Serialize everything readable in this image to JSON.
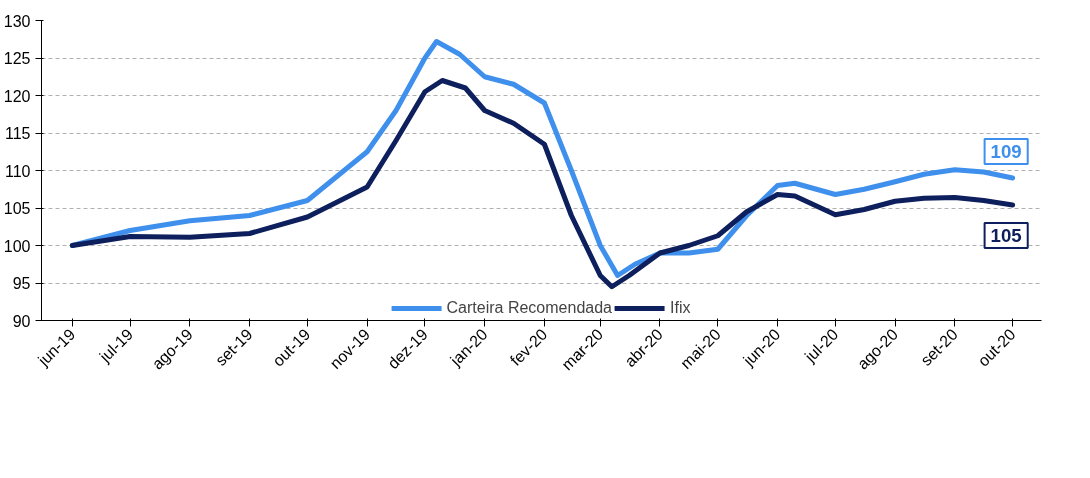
{
  "chart_data": {
    "type": "line",
    "x": [
      "2019-06-01",
      "2019-07-01",
      "2019-08-01",
      "2019-09-01",
      "2019-10-01",
      "2019-11-01",
      "2019-11-16",
      "2019-12-01",
      "2019-12-07",
      "2019-12-19",
      "2020-01-01",
      "2020-01-16",
      "2020-02-01",
      "2020-02-15",
      "2020-03-01",
      "2020-03-10",
      "2020-03-19",
      "2020-04-01",
      "2020-04-16",
      "2020-05-01",
      "2020-05-16",
      "2020-06-01",
      "2020-06-10",
      "2020-07-01",
      "2020-07-16",
      "2020-08-01",
      "2020-08-16",
      "2020-09-01",
      "2020-09-16",
      "2020-10-01"
    ],
    "series": [
      {
        "name": "Carteira Recomendada",
        "color": "#3f8fec",
        "values": [
          100,
          102,
          103.3,
          104,
          106,
          112.5,
          118,
          125,
          127.2,
          125.5,
          122.5,
          121.5,
          119,
          110,
          100,
          96,
          97.5,
          99,
          99,
          99.5,
          104,
          108,
          108.3,
          106.8,
          107.5,
          108.5,
          109.5,
          110.1,
          109.8,
          109
        ]
      },
      {
        "name": "Ifix",
        "color": "#0d1f5c",
        "x": [
          "2019-06-01",
          "2019-07-01",
          "2019-08-01",
          "2019-09-01",
          "2019-10-01",
          "2019-11-01",
          "2019-11-16",
          "2019-12-01",
          "2019-12-10",
          "2019-12-22",
          "2020-01-01",
          "2020-01-16",
          "2020-02-01",
          "2020-02-15",
          "2020-03-01",
          "2020-03-07",
          "2020-03-16",
          "2020-04-01",
          "2020-04-16",
          "2020-05-01",
          "2020-05-16",
          "2020-06-01",
          "2020-06-10",
          "2020-07-01",
          "2020-07-16",
          "2020-08-01",
          "2020-08-16",
          "2020-09-01",
          "2020-09-16",
          "2020-10-01"
        ],
        "values": [
          100,
          101.2,
          101.1,
          101.6,
          103.8,
          107.8,
          114,
          120.5,
          122,
          121,
          118,
          116.3,
          113.5,
          104,
          96,
          94.5,
          96,
          99,
          100,
          101.3,
          104.5,
          106.8,
          106.6,
          104.1,
          104.8,
          105.9,
          106.3,
          106.4,
          106,
          105.4
        ]
      }
    ],
    "xlim": [
      "2019-05-16",
      "2020-10-16"
    ],
    "xticks": [
      {
        "value": "2019-06-01",
        "label": "jun-19"
      },
      {
        "value": "2019-07-01",
        "label": "jul-19"
      },
      {
        "value": "2019-08-01",
        "label": "ago-19"
      },
      {
        "value": "2019-09-01",
        "label": "set-19"
      },
      {
        "value": "2019-10-01",
        "label": "out-19"
      },
      {
        "value": "2019-11-01",
        "label": "nov-19"
      },
      {
        "value": "2019-12-01",
        "label": "dez-19"
      },
      {
        "value": "2020-01-01",
        "label": "jan-20"
      },
      {
        "value": "2020-02-01",
        "label": "fev-20"
      },
      {
        "value": "2020-03-01",
        "label": "mar-20"
      },
      {
        "value": "2020-04-01",
        "label": "abr-20"
      },
      {
        "value": "2020-05-01",
        "label": "mai-20"
      },
      {
        "value": "2020-06-01",
        "label": "jun-20"
      },
      {
        "value": "2020-07-01",
        "label": "jul-20"
      },
      {
        "value": "2020-08-01",
        "label": "ago-20"
      },
      {
        "value": "2020-09-01",
        "label": "set-20"
      },
      {
        "value": "2020-10-01",
        "label": "out-20"
      }
    ],
    "ylim": [
      90,
      130
    ],
    "yticks": [
      90,
      95,
      100,
      105,
      110,
      115,
      120,
      125,
      130
    ],
    "grid": "y",
    "legend": "bottom",
    "marker": "none",
    "line_style": "solid",
    "annotations": [
      {
        "text": "109",
        "x": "2020-10-01",
        "y": 109
      },
      {
        "text": "105",
        "x": "2020-10-01",
        "y": 105
      }
    ]
  }
}
